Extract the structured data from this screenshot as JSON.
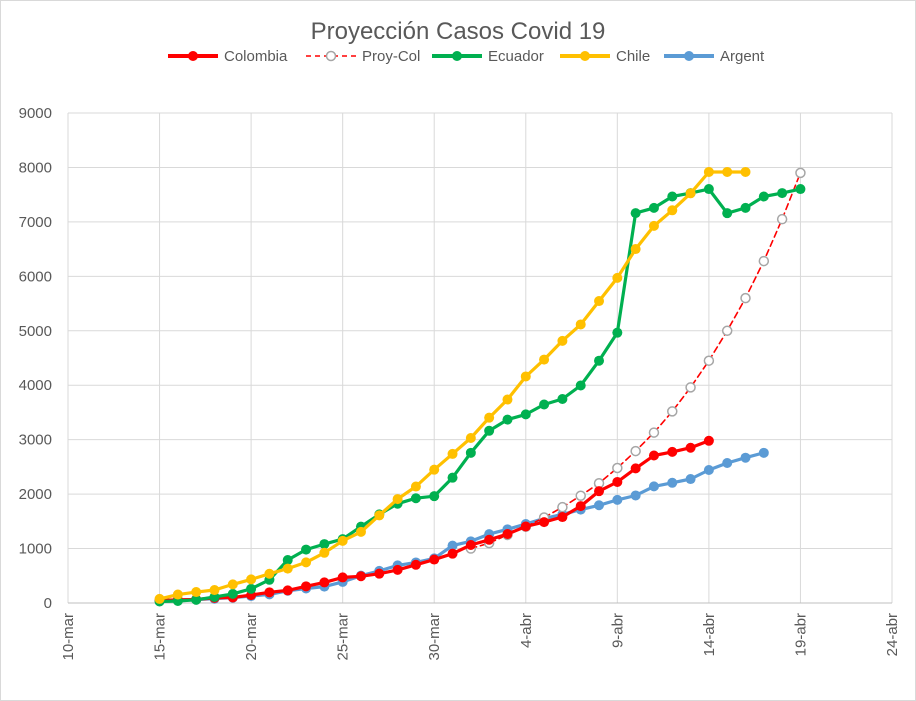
{
  "chart_data": {
    "type": "line",
    "title": "Proyección Casos Covid 19",
    "xlabel": "",
    "ylabel": "",
    "ylim": [
      0,
      9000
    ],
    "yticks": [
      0,
      1000,
      2000,
      3000,
      4000,
      5000,
      6000,
      7000,
      8000,
      9000
    ],
    "xlim": [
      "2020-03-10",
      "2020-04-24"
    ],
    "xticks": [
      "2020-03-10",
      "2020-03-15",
      "2020-03-20",
      "2020-03-25",
      "2020-03-30",
      "2020-04-04",
      "2020-04-09",
      "2020-04-14",
      "2020-04-19",
      "2020-04-24"
    ],
    "xtick_labels": [
      "10-mar",
      "15-mar",
      "20-mar",
      "25-mar",
      "30-mar",
      "4-abr",
      "9-abr",
      "14-abr",
      "19-abr",
      "24-abr"
    ],
    "grid": "vertical and horizontal major gridlines",
    "legend_position": "top",
    "series": [
      {
        "name": "Colombia",
        "color": "#ff0000",
        "style": "solid-line-filled-markers",
        "x": [
          "2020-03-15",
          "2020-03-16",
          "2020-03-17",
          "2020-03-18",
          "2020-03-19",
          "2020-03-20",
          "2020-03-21",
          "2020-03-22",
          "2020-03-23",
          "2020-03-24",
          "2020-03-25",
          "2020-03-26",
          "2020-03-27",
          "2020-03-28",
          "2020-03-29",
          "2020-03-30",
          "2020-03-31",
          "2020-04-01",
          "2020-04-02",
          "2020-04-03",
          "2020-04-04",
          "2020-04-05",
          "2020-04-06",
          "2020-04-07",
          "2020-04-08",
          "2020-04-09",
          "2020-04-10",
          "2020-04-11",
          "2020-04-12",
          "2020-04-13",
          "2020-04-14"
        ],
        "values": [
          45,
          57,
          65,
          93,
          102,
          145,
          196,
          231,
          306,
          378,
          470,
          491,
          539,
          608,
          702,
          798,
          906,
          1065,
          1161,
          1267,
          1406,
          1485,
          1579,
          1780,
          2054,
          2223,
          2473,
          2709,
          2776,
          2852,
          2979
        ]
      },
      {
        "name": "Proy-Col",
        "color": "#ff0000",
        "marker_color": "#a6a6a6",
        "style": "dashed-line-hollow-markers",
        "x": [
          "2020-04-01",
          "2020-04-02",
          "2020-04-03",
          "2020-04-04",
          "2020-04-05",
          "2020-04-06",
          "2020-04-07",
          "2020-04-08",
          "2020-04-09",
          "2020-04-10",
          "2020-04-11",
          "2020-04-12",
          "2020-04-13",
          "2020-04-14",
          "2020-04-15",
          "2020-04-16",
          "2020-04-17",
          "2020-04-18",
          "2020-04-19"
        ],
        "values": [
          1000,
          1100,
          1250,
          1400,
          1570,
          1760,
          1970,
          2200,
          2480,
          2790,
          3130,
          3520,
          3960,
          4450,
          5000,
          5600,
          6280,
          7050,
          7900
        ]
      },
      {
        "name": "Ecuador",
        "color": "#00b050",
        "style": "solid-line-filled-markers",
        "x": [
          "2020-03-15",
          "2020-03-16",
          "2020-03-17",
          "2020-03-18",
          "2020-03-19",
          "2020-03-20",
          "2020-03-21",
          "2020-03-22",
          "2020-03-23",
          "2020-03-24",
          "2020-03-25",
          "2020-03-26",
          "2020-03-27",
          "2020-03-28",
          "2020-03-29",
          "2020-03-30",
          "2020-03-31",
          "2020-04-01",
          "2020-04-02",
          "2020-04-03",
          "2020-04-04",
          "2020-04-05",
          "2020-04-06",
          "2020-04-07",
          "2020-04-08",
          "2020-04-09",
          "2020-04-10",
          "2020-04-11",
          "2020-04-12",
          "2020-04-13",
          "2020-04-14",
          "2020-04-15",
          "2020-04-16",
          "2020-04-17",
          "2020-04-18",
          "2020-04-19"
        ],
        "values": [
          28,
          37,
          58,
          111,
          168,
          260,
          426,
          789,
          981,
          1082,
          1173,
          1403,
          1627,
          1823,
          1924,
          1962,
          2302,
          2758,
          3163,
          3368,
          3465,
          3646,
          3747,
          3995,
          4450,
          4965,
          7161,
          7257,
          7466,
          7529,
          7603,
          7160,
          7257,
          7466,
          7529,
          7603
        ]
      },
      {
        "name": "Chile",
        "color": "#ffc000",
        "style": "solid-line-filled-markers",
        "x": [
          "2020-03-15",
          "2020-03-16",
          "2020-03-17",
          "2020-03-18",
          "2020-03-19",
          "2020-03-20",
          "2020-03-21",
          "2020-03-22",
          "2020-03-23",
          "2020-03-24",
          "2020-03-25",
          "2020-03-26",
          "2020-03-27",
          "2020-03-28",
          "2020-03-29",
          "2020-03-30",
          "2020-03-31",
          "2020-04-01",
          "2020-04-02",
          "2020-04-03",
          "2020-04-04",
          "2020-04-05",
          "2020-04-06",
          "2020-04-07",
          "2020-04-08",
          "2020-04-09",
          "2020-04-10",
          "2020-04-11",
          "2020-04-12",
          "2020-04-13",
          "2020-04-14",
          "2020-04-15",
          "2020-04-16"
        ],
        "values": [
          75,
          155,
          201,
          238,
          342,
          434,
          537,
          632,
          746,
          922,
          1142,
          1306,
          1610,
          1909,
          2139,
          2449,
          2738,
          3031,
          3404,
          3737,
          4161,
          4471,
          4815,
          5116,
          5546,
          5972,
          6501,
          6927,
          7213,
          7525,
          7917,
          7917,
          7917
        ]
      },
      {
        "name": "Argent",
        "color": "#5b9bd5",
        "style": "solid-line-filled-markers",
        "x": [
          "2020-03-15",
          "2020-03-16",
          "2020-03-17",
          "2020-03-18",
          "2020-03-19",
          "2020-03-20",
          "2020-03-21",
          "2020-03-22",
          "2020-03-23",
          "2020-03-24",
          "2020-03-25",
          "2020-03-26",
          "2020-03-27",
          "2020-03-28",
          "2020-03-29",
          "2020-03-30",
          "2020-03-31",
          "2020-04-01",
          "2020-04-02",
          "2020-04-03",
          "2020-04-04",
          "2020-04-05",
          "2020-04-06",
          "2020-04-07",
          "2020-04-08",
          "2020-04-09",
          "2020-04-10",
          "2020-04-11",
          "2020-04-12",
          "2020-04-13",
          "2020-04-14",
          "2020-04-15",
          "2020-04-16",
          "2020-04-17"
        ],
        "values": [
          45,
          56,
          65,
          79,
          97,
          128,
          158,
          225,
          266,
          301,
          387,
          502,
          589,
          690,
          745,
          820,
          1054,
          1133,
          1265,
          1353,
          1451,
          1554,
          1628,
          1715,
          1795,
          1894,
          1975,
          2142,
          2208,
          2277,
          2443,
          2571,
          2669,
          2758
        ]
      }
    ]
  }
}
